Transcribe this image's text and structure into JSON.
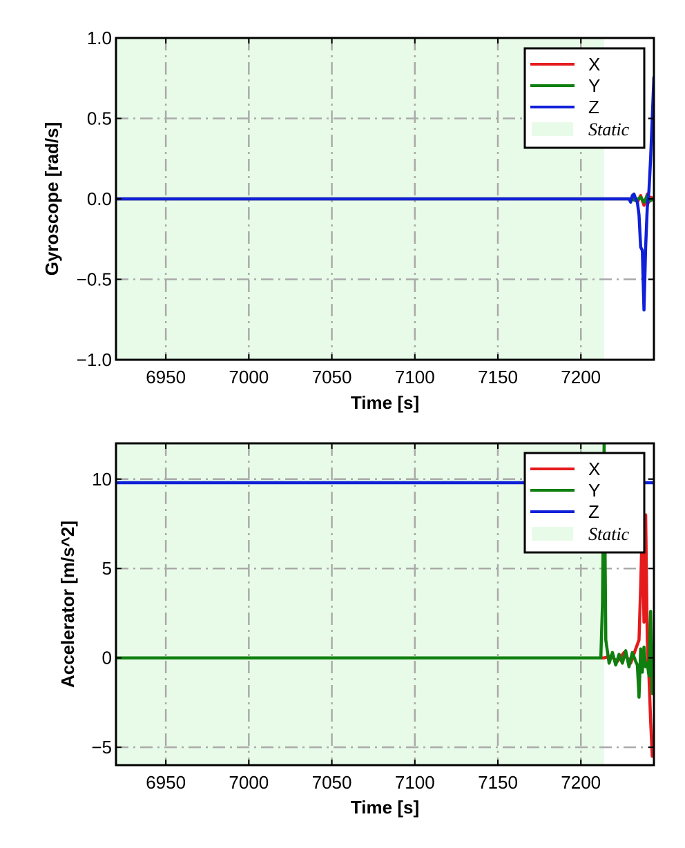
{
  "colors": {
    "x": "#e41a1c",
    "y": "#0f7f0f",
    "z": "#1020d8",
    "static_fill": "#e8fbe8",
    "grid": "#aaaaaa"
  },
  "chart_data": [
    {
      "type": "line",
      "xlabel": "Time [s]",
      "ylabel": "Gyroscope [rad/s]",
      "xlim": [
        6920,
        7244
      ],
      "ylim": [
        -1.0,
        1.0
      ],
      "xticks": [
        6950,
        7000,
        7050,
        7100,
        7150,
        7200
      ],
      "yticks": [
        -1.0,
        -0.5,
        0.0,
        0.5,
        1.0
      ],
      "ytick_labels": [
        "−1.0",
        "−0.5",
        "0.0",
        "0.5",
        "1.0"
      ],
      "grid": true,
      "legend_position": "top-right",
      "static_region": {
        "label": "Static",
        "x": [
          6920,
          7214
        ]
      },
      "series": [
        {
          "name": "X",
          "color_key": "x",
          "x": [
            6920,
            7214,
            7230,
            7232,
            7234,
            7236,
            7238,
            7240,
            7241,
            7242,
            7244
          ],
          "y": [
            0,
            0,
            0,
            0.01,
            -0.02,
            0.02,
            -0.04,
            0.03,
            -0.02,
            0.01,
            0
          ]
        },
        {
          "name": "Y",
          "color_key": "y",
          "x": [
            6920,
            7214,
            7230,
            7233,
            7236,
            7238,
            7240,
            7242,
            7244
          ],
          "y": [
            0,
            0,
            0,
            -0.01,
            0.01,
            -0.02,
            0.02,
            -0.01,
            0
          ]
        },
        {
          "name": "Z",
          "color_key": "z",
          "x": [
            6920,
            7214,
            7229,
            7230,
            7231,
            7232,
            7233,
            7234,
            7235,
            7236,
            7237,
            7238,
            7239,
            7240,
            7241,
            7242,
            7243,
            7244
          ],
          "y": [
            0,
            0,
            0,
            -0.02,
            0.02,
            0.03,
            0,
            -0.02,
            -0.1,
            -0.3,
            -0.32,
            -0.69,
            -0.3,
            -0.05,
            0.05,
            0.25,
            0.5,
            0.76
          ]
        }
      ]
    },
    {
      "type": "line",
      "xlabel": "Time [s]",
      "ylabel": "Accelerator [m/s^2]",
      "xlim": [
        6920,
        7244
      ],
      "ylim": [
        -6,
        12
      ],
      "xticks": [
        6950,
        7000,
        7050,
        7100,
        7150,
        7200
      ],
      "yticks": [
        -5,
        0,
        5,
        10
      ],
      "ytick_labels": [
        "−5",
        "0",
        "5",
        "10"
      ],
      "grid": true,
      "legend_position": "top-right",
      "static_region": {
        "label": "Static",
        "x": [
          6920,
          7214
        ]
      },
      "series": [
        {
          "name": "X",
          "color_key": "x",
          "x": [
            6920,
            7214,
            7218,
            7222,
            7226,
            7230,
            7233,
            7235,
            7236,
            7237,
            7238,
            7239,
            7240,
            7241,
            7242,
            7243,
            7244
          ],
          "y": [
            0,
            0,
            0.1,
            -0.2,
            0.3,
            -0.3,
            0.5,
            1.0,
            4.0,
            7.5,
            2.0,
            8.0,
            1.0,
            -1.0,
            -3.5,
            -5.5,
            -5.0
          ]
        },
        {
          "name": "Y",
          "color_key": "y",
          "x": [
            6920,
            7212,
            7213,
            7214,
            7215,
            7217,
            7219,
            7221,
            7223,
            7225,
            7227,
            7229,
            7231,
            7233,
            7234,
            7235,
            7236,
            7237,
            7238,
            7239,
            7240,
            7241,
            7242,
            7243,
            7244
          ],
          "y": [
            0,
            0,
            3.0,
            12.0,
            1.0,
            -0.3,
            0.3,
            -0.4,
            0.2,
            -0.3,
            0.4,
            -0.5,
            0.3,
            -0.2,
            -0.4,
            -2.2,
            0.5,
            -0.8,
            0.6,
            -0.5,
            -0.3,
            -1.0,
            2.6,
            -2.0,
            0.5
          ]
        },
        {
          "name": "Z",
          "color_key": "z",
          "x": [
            6920,
            7244
          ],
          "y": [
            9.8,
            9.8
          ]
        }
      ]
    }
  ]
}
